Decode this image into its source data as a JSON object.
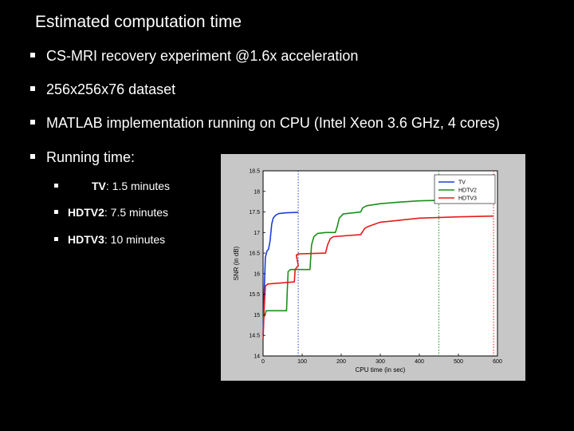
{
  "slide": {
    "title": "Estimated computation time",
    "bullets": [
      "CS-MRI recovery experiment @1.6x acceleration",
      "256x256x76 dataset",
      "MATLAB implementation running on CPU (Intel Xeon 3.6 GHz, 4 cores)",
      "Running time:"
    ],
    "sub_bullets": [
      {
        "name": "TV",
        "text": ": 1.5 minutes"
      },
      {
        "name": "HDTV2",
        "text": ": 7.5 minutes"
      },
      {
        "name": "HDTV3",
        "text": ": 10 minutes"
      }
    ]
  },
  "chart_data": {
    "type": "line",
    "xlabel": "CPU time (in sec)",
    "ylabel": "SNR (in dB)",
    "xlim": [
      0,
      600
    ],
    "ylim": [
      14,
      18.5
    ],
    "xticks": [
      0,
      100,
      200,
      300,
      400,
      500,
      600
    ],
    "yticks": [
      14,
      14.5,
      15,
      15.5,
      16,
      16.5,
      17,
      17.5,
      18,
      18.5
    ],
    "legend_position": "top-right",
    "series": [
      {
        "name": "TV",
        "color": "#1f3fd6",
        "end_x": 90,
        "points": [
          [
            0,
            14.5
          ],
          [
            3,
            15.6
          ],
          [
            6,
            16.4
          ],
          [
            10,
            16.55
          ],
          [
            14,
            16.6
          ],
          [
            18,
            16.8
          ],
          [
            22,
            17.2
          ],
          [
            26,
            17.35
          ],
          [
            32,
            17.42
          ],
          [
            40,
            17.46
          ],
          [
            60,
            17.48
          ],
          [
            90,
            17.49
          ]
        ]
      },
      {
        "name": "HDTV2",
        "color": "#1b8f1b",
        "end_x": 450,
        "points": [
          [
            0,
            14.9
          ],
          [
            5,
            15.0
          ],
          [
            8,
            15.1
          ],
          [
            60,
            15.1
          ],
          [
            62,
            15.6
          ],
          [
            64,
            16.05
          ],
          [
            70,
            16.1
          ],
          [
            120,
            16.1
          ],
          [
            124,
            16.7
          ],
          [
            130,
            16.9
          ],
          [
            140,
            16.98
          ],
          [
            160,
            17.0
          ],
          [
            185,
            17.0
          ],
          [
            190,
            17.15
          ],
          [
            195,
            17.35
          ],
          [
            205,
            17.45
          ],
          [
            250,
            17.5
          ],
          [
            255,
            17.6
          ],
          [
            265,
            17.65
          ],
          [
            300,
            17.7
          ],
          [
            350,
            17.74
          ],
          [
            400,
            17.77
          ],
          [
            450,
            17.78
          ]
        ]
      },
      {
        "name": "HDTV3",
        "color": "#e51b1b",
        "end_x": 590,
        "points": [
          [
            0,
            14.4
          ],
          [
            3,
            15.2
          ],
          [
            6,
            15.7
          ],
          [
            12,
            15.75
          ],
          [
            80,
            15.8
          ],
          [
            82,
            16.1
          ],
          [
            90,
            16.2
          ],
          [
            85,
            16.45
          ],
          [
            90,
            16.48
          ],
          [
            160,
            16.5
          ],
          [
            165,
            16.7
          ],
          [
            172,
            16.85
          ],
          [
            180,
            16.9
          ],
          [
            250,
            16.95
          ],
          [
            260,
            17.1
          ],
          [
            270,
            17.15
          ],
          [
            300,
            17.25
          ],
          [
            350,
            17.3
          ],
          [
            400,
            17.35
          ],
          [
            500,
            17.38
          ],
          [
            590,
            17.4
          ]
        ]
      }
    ]
  }
}
